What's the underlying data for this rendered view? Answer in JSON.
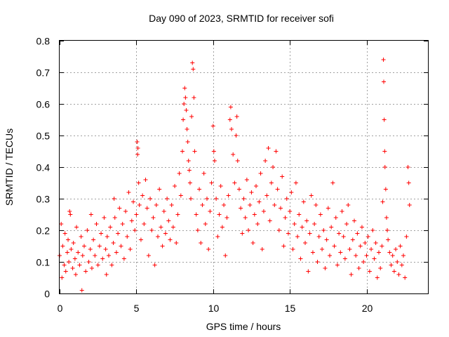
{
  "chart_data": {
    "type": "scatter",
    "title": "Day 090 of 2023, SRMTID for receiver sofi",
    "xlabel": "GPS time / hours",
    "ylabel": "SRMTID / TECUs",
    "xlim": [
      0,
      24
    ],
    "ylim": [
      0,
      0.8
    ],
    "xticks": [
      0,
      5,
      10,
      15,
      20
    ],
    "yticks": [
      0,
      0.1,
      0.2,
      0.3,
      0.4,
      0.5,
      0.6,
      0.7,
      0.8
    ],
    "grid": true,
    "marker": "plus",
    "series_color": "#ff0000",
    "series": [
      {
        "name": "SRMTID",
        "points": [
          [
            0.0,
            0.12
          ],
          [
            0.1,
            0.22
          ],
          [
            0.15,
            0.05
          ],
          [
            0.2,
            0.15
          ],
          [
            0.3,
            0.09
          ],
          [
            0.35,
            0.19
          ],
          [
            0.4,
            0.07
          ],
          [
            0.5,
            0.13
          ],
          [
            0.55,
            0.17
          ],
          [
            0.6,
            0.1
          ],
          [
            0.65,
            0.26
          ],
          [
            0.7,
            0.25
          ],
          [
            0.75,
            0.14
          ],
          [
            0.85,
            0.08
          ],
          [
            0.9,
            0.16
          ],
          [
            1.0,
            0.11
          ],
          [
            1.05,
            0.06
          ],
          [
            1.1,
            0.21
          ],
          [
            1.2,
            0.13
          ],
          [
            1.3,
            0.09
          ],
          [
            1.4,
            0.18
          ],
          [
            1.45,
            0.01
          ],
          [
            1.5,
            0.12
          ],
          [
            1.6,
            0.15
          ],
          [
            1.7,
            0.07
          ],
          [
            1.8,
            0.2
          ],
          [
            1.9,
            0.1
          ],
          [
            2.0,
            0.14
          ],
          [
            2.05,
            0.25
          ],
          [
            2.1,
            0.08
          ],
          [
            2.2,
            0.17
          ],
          [
            2.3,
            0.12
          ],
          [
            2.4,
            0.22
          ],
          [
            2.5,
            0.09
          ],
          [
            2.6,
            0.15
          ],
          [
            2.7,
            0.19
          ],
          [
            2.8,
            0.11
          ],
          [
            2.9,
            0.24
          ],
          [
            3.0,
            0.14
          ],
          [
            3.05,
            0.06
          ],
          [
            3.1,
            0.18
          ],
          [
            3.2,
            0.12
          ],
          [
            3.3,
            0.21
          ],
          [
            3.4,
            0.09
          ],
          [
            3.5,
            0.16
          ],
          [
            3.55,
            0.3
          ],
          [
            3.6,
            0.24
          ],
          [
            3.7,
            0.13
          ],
          [
            3.8,
            0.19
          ],
          [
            3.9,
            0.27
          ],
          [
            4.0,
            0.15
          ],
          [
            4.1,
            0.22
          ],
          [
            4.2,
            0.11
          ],
          [
            4.3,
            0.26
          ],
          [
            4.4,
            0.18
          ],
          [
            4.5,
            0.32
          ],
          [
            4.6,
            0.14
          ],
          [
            4.7,
            0.23
          ],
          [
            4.8,
            0.29
          ],
          [
            4.9,
            0.2
          ],
          [
            5.0,
            0.25
          ],
          [
            5.05,
            0.48
          ],
          [
            5.08,
            0.44
          ],
          [
            5.1,
            0.46
          ],
          [
            5.15,
            0.35
          ],
          [
            5.2,
            0.28
          ],
          [
            5.3,
            0.17
          ],
          [
            5.4,
            0.31
          ],
          [
            5.5,
            0.22
          ],
          [
            5.6,
            0.36
          ],
          [
            5.7,
            0.27
          ],
          [
            5.8,
            0.12
          ],
          [
            5.9,
            0.3
          ],
          [
            6.0,
            0.2
          ],
          [
            6.1,
            0.24
          ],
          [
            6.2,
            0.09
          ],
          [
            6.3,
            0.28
          ],
          [
            6.4,
            0.18
          ],
          [
            6.5,
            0.33
          ],
          [
            6.6,
            0.21
          ],
          [
            6.7,
            0.15
          ],
          [
            6.8,
            0.26
          ],
          [
            6.9,
            0.19
          ],
          [
            7.0,
            0.3
          ],
          [
            7.1,
            0.23
          ],
          [
            7.2,
            0.17
          ],
          [
            7.3,
            0.28
          ],
          [
            7.4,
            0.21
          ],
          [
            7.5,
            0.34
          ],
          [
            7.6,
            0.16
          ],
          [
            7.7,
            0.25
          ],
          [
            7.8,
            0.38
          ],
          [
            7.9,
            0.31
          ],
          [
            8.0,
            0.45
          ],
          [
            8.05,
            0.55
          ],
          [
            8.1,
            0.6
          ],
          [
            8.15,
            0.65
          ],
          [
            8.2,
            0.62
          ],
          [
            8.25,
            0.58
          ],
          [
            8.3,
            0.52
          ],
          [
            8.35,
            0.48
          ],
          [
            8.4,
            0.42
          ],
          [
            8.45,
            0.39
          ],
          [
            8.5,
            0.35
          ],
          [
            8.55,
            0.3
          ],
          [
            8.6,
            0.56
          ],
          [
            8.65,
            0.73
          ],
          [
            8.7,
            0.71
          ],
          [
            8.75,
            0.62
          ],
          [
            8.8,
            0.45
          ],
          [
            8.9,
            0.25
          ],
          [
            9.0,
            0.2
          ],
          [
            9.1,
            0.33
          ],
          [
            9.2,
            0.16
          ],
          [
            9.3,
            0.28
          ],
          [
            9.4,
            0.38
          ],
          [
            9.5,
            0.22
          ],
          [
            9.6,
            0.3
          ],
          [
            9.7,
            0.14
          ],
          [
            9.8,
            0.26
          ],
          [
            9.9,
            0.35
          ],
          [
            10.0,
            0.53
          ],
          [
            10.05,
            0.45
          ],
          [
            10.1,
            0.42
          ],
          [
            10.2,
            0.3
          ],
          [
            10.3,
            0.18
          ],
          [
            10.4,
            0.25
          ],
          [
            10.5,
            0.34
          ],
          [
            10.6,
            0.21
          ],
          [
            10.7,
            0.28
          ],
          [
            10.8,
            0.12
          ],
          [
            10.9,
            0.24
          ],
          [
            11.0,
            0.31
          ],
          [
            11.1,
            0.55
          ],
          [
            11.15,
            0.59
          ],
          [
            11.2,
            0.52
          ],
          [
            11.3,
            0.44
          ],
          [
            11.4,
            0.35
          ],
          [
            11.5,
            0.5
          ],
          [
            11.55,
            0.56
          ],
          [
            11.6,
            0.42
          ],
          [
            11.7,
            0.33
          ],
          [
            11.8,
            0.27
          ],
          [
            11.9,
            0.19
          ],
          [
            12.0,
            0.3
          ],
          [
            12.1,
            0.24
          ],
          [
            12.2,
            0.36
          ],
          [
            12.3,
            0.2
          ],
          [
            12.4,
            0.28
          ],
          [
            12.5,
            0.32
          ],
          [
            12.6,
            0.16
          ],
          [
            12.7,
            0.25
          ],
          [
            12.8,
            0.34
          ],
          [
            12.9,
            0.22
          ],
          [
            13.0,
            0.29
          ],
          [
            13.1,
            0.38
          ],
          [
            13.2,
            0.14
          ],
          [
            13.3,
            0.26
          ],
          [
            13.4,
            0.42
          ],
          [
            13.5,
            0.31
          ],
          [
            13.6,
            0.46
          ],
          [
            13.7,
            0.23
          ],
          [
            13.8,
            0.35
          ],
          [
            13.9,
            0.4
          ],
          [
            14.0,
            0.28
          ],
          [
            14.1,
            0.45
          ],
          [
            14.2,
            0.33
          ],
          [
            14.3,
            0.2
          ],
          [
            14.4,
            0.27
          ],
          [
            14.5,
            0.37
          ],
          [
            14.6,
            0.15
          ],
          [
            14.7,
            0.24
          ],
          [
            14.8,
            0.3
          ],
          [
            14.9,
            0.19
          ],
          [
            15.0,
            0.26
          ],
          [
            15.1,
            0.32
          ],
          [
            15.2,
            0.14
          ],
          [
            15.3,
            0.22
          ],
          [
            15.4,
            0.35
          ],
          [
            15.5,
            0.18
          ],
          [
            15.6,
            0.25
          ],
          [
            15.7,
            0.11
          ],
          [
            15.8,
            0.21
          ],
          [
            15.9,
            0.29
          ],
          [
            16.0,
            0.16
          ],
          [
            16.1,
            0.23
          ],
          [
            16.2,
            0.07
          ],
          [
            16.3,
            0.19
          ],
          [
            16.4,
            0.31
          ],
          [
            16.5,
            0.13
          ],
          [
            16.6,
            0.22
          ],
          [
            16.7,
            0.28
          ],
          [
            16.8,
            0.1
          ],
          [
            16.9,
            0.18
          ],
          [
            17.0,
            0.25
          ],
          [
            17.1,
            0.14
          ],
          [
            17.2,
            0.2
          ],
          [
            17.3,
            0.08
          ],
          [
            17.4,
            0.17
          ],
          [
            17.5,
            0.27
          ],
          [
            17.6,
            0.12
          ],
          [
            17.7,
            0.21
          ],
          [
            17.8,
            0.35
          ],
          [
            17.9,
            0.15
          ],
          [
            18.0,
            0.24
          ],
          [
            18.1,
            0.09
          ],
          [
            18.2,
            0.19
          ],
          [
            18.3,
            0.13
          ],
          [
            18.4,
            0.26
          ],
          [
            18.5,
            0.18
          ],
          [
            18.6,
            0.11
          ],
          [
            18.7,
            0.22
          ],
          [
            18.8,
            0.28
          ],
          [
            18.9,
            0.14
          ],
          [
            19.0,
            0.06
          ],
          [
            19.1,
            0.17
          ],
          [
            19.2,
            0.23
          ],
          [
            19.3,
            0.12
          ],
          [
            19.4,
            0.19
          ],
          [
            19.5,
            0.08
          ],
          [
            19.6,
            0.15
          ],
          [
            19.7,
            0.21
          ],
          [
            19.8,
            0.1
          ],
          [
            19.9,
            0.16
          ],
          [
            20.0,
            0.12
          ],
          [
            20.1,
            0.18
          ],
          [
            20.2,
            0.07
          ],
          [
            20.3,
            0.14
          ],
          [
            20.4,
            0.2
          ],
          [
            20.5,
            0.11
          ],
          [
            20.6,
            0.16
          ],
          [
            20.7,
            0.05
          ],
          [
            20.8,
            0.13
          ],
          [
            20.9,
            0.08
          ],
          [
            21.0,
            0.15
          ],
          [
            21.05,
            0.29
          ],
          [
            21.1,
            0.74
          ],
          [
            21.12,
            0.67
          ],
          [
            21.15,
            0.55
          ],
          [
            21.18,
            0.45
          ],
          [
            21.2,
            0.4
          ],
          [
            21.25,
            0.33
          ],
          [
            21.3,
            0.24
          ],
          [
            21.35,
            0.2
          ],
          [
            21.4,
            0.17
          ],
          [
            21.5,
            0.13
          ],
          [
            21.6,
            0.09
          ],
          [
            21.7,
            0.12
          ],
          [
            21.8,
            0.07
          ],
          [
            21.9,
            0.14
          ],
          [
            22.0,
            0.1
          ],
          [
            22.1,
            0.06
          ],
          [
            22.2,
            0.15
          ],
          [
            22.3,
            0.09
          ],
          [
            22.4,
            0.12
          ],
          [
            22.5,
            0.05
          ],
          [
            22.6,
            0.18
          ],
          [
            22.7,
            0.4
          ],
          [
            22.75,
            0.35
          ],
          [
            22.8,
            0.28
          ]
        ]
      }
    ]
  }
}
